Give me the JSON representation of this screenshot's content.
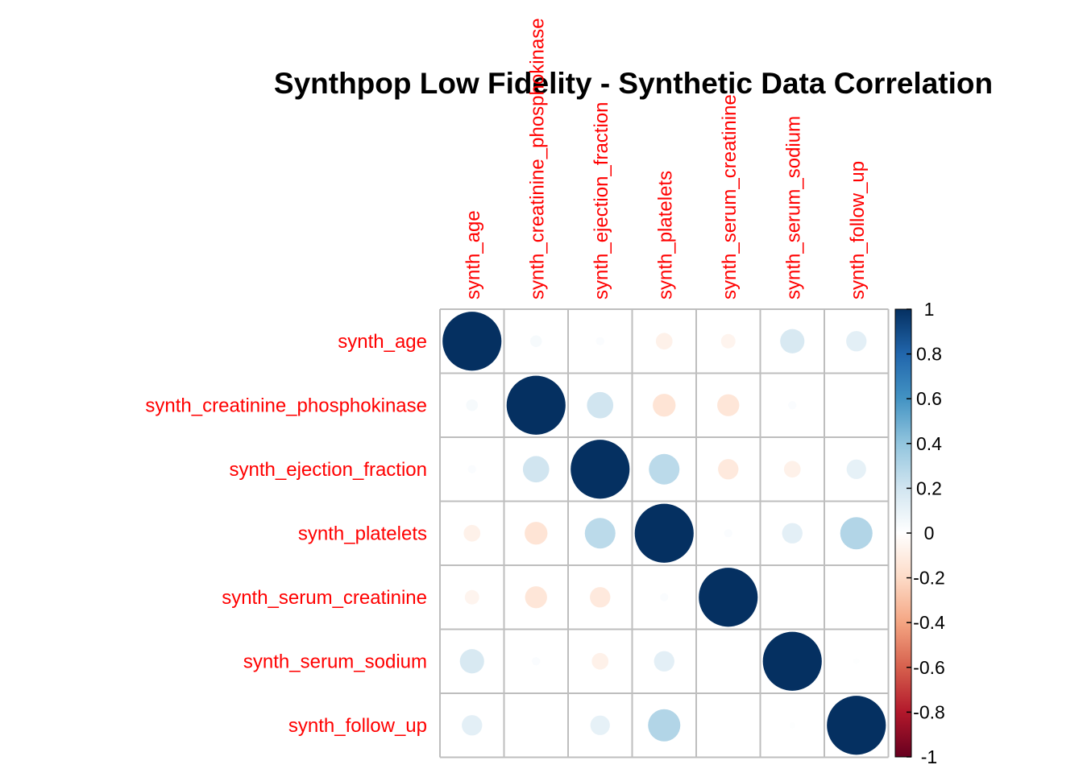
{
  "chart_data": {
    "type": "heatmap",
    "title": "Synthpop Low Fidelity - Synthetic Data Correlation",
    "variables": [
      "synth_age",
      "synth_creatinine_phosphokinase",
      "synth_ejection_fraction",
      "synth_platelets",
      "synth_serum_creatinine",
      "synth_serum_sodium",
      "synth_follow_up"
    ],
    "matrix": [
      [
        1.0,
        0.04,
        0.02,
        -0.08,
        -0.06,
        0.17,
        0.12
      ],
      [
        0.04,
        1.0,
        0.2,
        -0.15,
        -0.14,
        0.02,
        0.0
      ],
      [
        0.02,
        0.2,
        1.0,
        0.27,
        -0.12,
        -0.08,
        0.11
      ],
      [
        -0.08,
        -0.15,
        0.27,
        1.0,
        0.02,
        0.12,
        0.3
      ],
      [
        -0.06,
        -0.14,
        -0.12,
        0.02,
        1.0,
        0.0,
        0.0
      ],
      [
        0.17,
        0.02,
        -0.08,
        0.12,
        0.0,
        1.0,
        0.01
      ],
      [
        0.12,
        0.0,
        0.11,
        0.3,
        0.0,
        0.01,
        1.0
      ]
    ],
    "colorbar": {
      "range": [
        -1,
        1
      ],
      "ticks": [
        "1",
        "0.8",
        "0.6",
        "0.4",
        "0.2",
        "0",
        "-0.2",
        "-0.4",
        "-0.6",
        "-0.8",
        "-1"
      ],
      "tick_values": [
        1,
        0.8,
        0.6,
        0.4,
        0.2,
        0,
        -0.2,
        -0.4,
        -0.6,
        -0.8,
        -1
      ]
    },
    "method": "circle",
    "colors": {
      "label": "#FF0000",
      "grid": "#BEBEBE",
      "negative_end": "#67001F",
      "positive_end": "#053061"
    }
  }
}
